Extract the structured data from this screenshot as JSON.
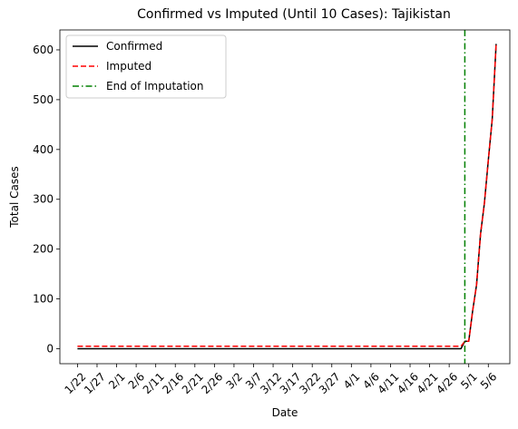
{
  "chart_data": {
    "type": "line",
    "title": "Confirmed vs Imputed (Until 10 Cases): Tajikistan",
    "xlabel": "Date",
    "ylabel": "Total Cases",
    "ylim": [
      -30,
      640
    ],
    "xlim_days": [
      -4.5,
      110.5
    ],
    "x_ticks": [
      {
        "day": 0,
        "label": "1/22"
      },
      {
        "day": 5,
        "label": "1/27"
      },
      {
        "day": 10,
        "label": "2/1"
      },
      {
        "day": 15,
        "label": "2/6"
      },
      {
        "day": 20,
        "label": "2/11"
      },
      {
        "day": 25,
        "label": "2/16"
      },
      {
        "day": 30,
        "label": "2/21"
      },
      {
        "day": 35,
        "label": "2/26"
      },
      {
        "day": 40,
        "label": "3/2"
      },
      {
        "day": 45,
        "label": "3/7"
      },
      {
        "day": 50,
        "label": "3/12"
      },
      {
        "day": 55,
        "label": "3/17"
      },
      {
        "day": 60,
        "label": "3/22"
      },
      {
        "day": 65,
        "label": "3/27"
      },
      {
        "day": 70,
        "label": "4/1"
      },
      {
        "day": 75,
        "label": "4/6"
      },
      {
        "day": 80,
        "label": "4/11"
      },
      {
        "day": 85,
        "label": "4/16"
      },
      {
        "day": 90,
        "label": "4/21"
      },
      {
        "day": 95,
        "label": "4/26"
      },
      {
        "day": 100,
        "label": "5/1"
      },
      {
        "day": 105,
        "label": "5/6"
      }
    ],
    "y_ticks": [
      0,
      100,
      200,
      300,
      400,
      500,
      600
    ],
    "series": [
      {
        "name": "Confirmed",
        "color": "#000000",
        "style": "solid",
        "x": [
          0,
          98,
          99,
          100,
          101,
          102,
          103,
          104,
          105,
          106,
          107
        ],
        "y": [
          0,
          0,
          15,
          15,
          76,
          128,
          230,
          293,
          379,
          461,
          612
        ]
      },
      {
        "name": "Imputed",
        "color": "#ff0000",
        "style": "dashed",
        "x": [
          0,
          98,
          99,
          100,
          101,
          102,
          103,
          104,
          105,
          106,
          107
        ],
        "y": [
          5,
          5,
          15,
          15,
          76,
          128,
          230,
          293,
          379,
          461,
          612
        ]
      }
    ],
    "vline": {
      "name": "End of Imputation",
      "color": "#008000",
      "style": "dashdot",
      "x": 99
    },
    "legend": {
      "position": "top-left",
      "entries": [
        {
          "label": "Confirmed",
          "color": "#000000",
          "style": "solid"
        },
        {
          "label": "Imputed",
          "color": "#ff0000",
          "style": "dashed"
        },
        {
          "label": "End of Imputation",
          "color": "#008000",
          "style": "dashdot"
        }
      ]
    }
  }
}
